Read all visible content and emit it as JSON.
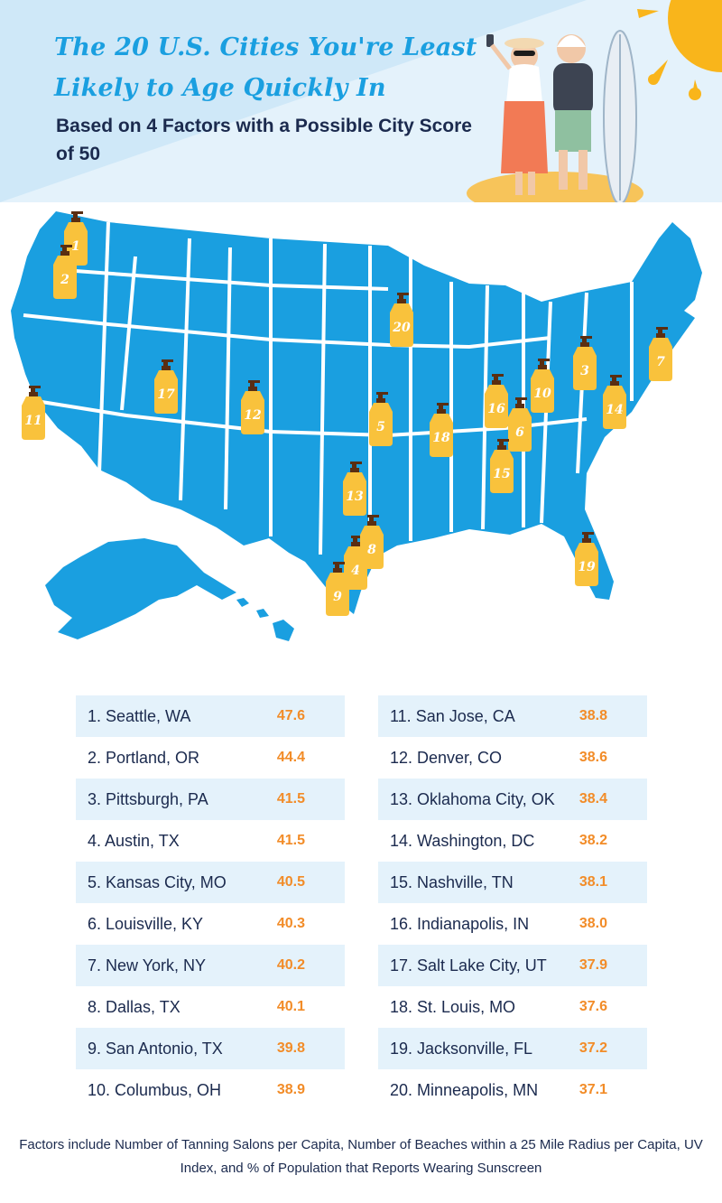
{
  "header": {
    "title": "The 20 U.S. Cities You're Least Likely to Age Quickly In",
    "subtitle": "Based on 4 Factors with a Possible City Score of 50"
  },
  "colors": {
    "map_fill": "#1a9fe0",
    "pin_fill": "#f9c23c",
    "pin_cap": "#5a2e12",
    "title": "#1a9fe0",
    "subtitle": "#1b2a4e",
    "score": "#f28c28",
    "row_shade": "#e4f2fb",
    "sun": "#f9b51b"
  },
  "icons": [
    "sun-icon",
    "couple-illustration",
    "surfboard-icon",
    "sunscreen-bottle-icon"
  ],
  "map_pins": [
    "1",
    "2",
    "3",
    "4",
    "5",
    "6",
    "7",
    "8",
    "9",
    "10",
    "11",
    "12",
    "13",
    "14",
    "15",
    "16",
    "17",
    "18",
    "19",
    "20"
  ],
  "table": {
    "left": [
      {
        "name": "1. Seattle, WA",
        "score": "47.6"
      },
      {
        "name": "2. Portland, OR",
        "score": "44.4"
      },
      {
        "name": "3. Pittsburgh, PA",
        "score": "41.5"
      },
      {
        "name": "4. Austin, TX",
        "score": "41.5"
      },
      {
        "name": "5. Kansas City, MO",
        "score": "40.5"
      },
      {
        "name": "6. Louisville, KY",
        "score": "40.3"
      },
      {
        "name": "7. New York, NY",
        "score": "40.2"
      },
      {
        "name": "8. Dallas, TX",
        "score": "40.1"
      },
      {
        "name": "9. San Antonio, TX",
        "score": "39.8"
      },
      {
        "name": "10. Columbus, OH",
        "score": "38.9"
      }
    ],
    "right": [
      {
        "name": "11. San Jose, CA",
        "score": "38.8"
      },
      {
        "name": "12. Denver, CO",
        "score": "38.6"
      },
      {
        "name": "13. Oklahoma City, OK",
        "score": "38.4"
      },
      {
        "name": "14. Washington, DC",
        "score": "38.2"
      },
      {
        "name": "15. Nashville, TN",
        "score": "38.1"
      },
      {
        "name": "16. Indianapolis, IN",
        "score": "38.0"
      },
      {
        "name": "17. Salt Lake City, UT",
        "score": "37.9"
      },
      {
        "name": "18. St. Louis, MO",
        "score": "37.6"
      },
      {
        "name": "19. Jacksonville, FL",
        "score": "37.2"
      },
      {
        "name": "20. Minneapolis, MN",
        "score": "37.1"
      }
    ]
  },
  "footnote": "Factors include Number of Tanning Salons per Capita, Number of Beaches within a 25 Mile Radius per Capita, UV Index, and % of Population that Reports Wearing Sunscreen"
}
